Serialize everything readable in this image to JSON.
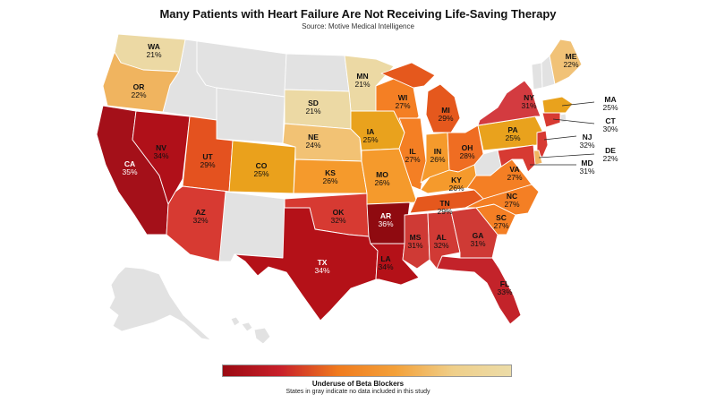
{
  "title": "Many Patients with Heart Failure Are Not Receiving Life-Saving Therapy",
  "subtitle": "Source: Motive Medical Intelligence",
  "legend": {
    "title": "Underuse of Beta Blockers",
    "note": "States in gray indicate no data included in this study",
    "gradient_colors": [
      "#9a0a12",
      "#c8202a",
      "#f07b1e",
      "#f3a13a",
      "#efcf8a",
      "#ecdca8"
    ]
  },
  "colors": {
    "no_data": "#e2e2e2",
    "border": "#ffffff",
    "water": "#ffffff"
  },
  "states": [
    {
      "abbr": "WA",
      "value": "21%"
    },
    {
      "abbr": "OR",
      "value": "22%"
    },
    {
      "abbr": "CA",
      "value": "35%"
    },
    {
      "abbr": "NV",
      "value": "34%"
    },
    {
      "abbr": "UT",
      "value": "29%"
    },
    {
      "abbr": "AZ",
      "value": "32%"
    },
    {
      "abbr": "CO",
      "value": "25%"
    },
    {
      "abbr": "MN",
      "value": "21%"
    },
    {
      "abbr": "SD",
      "value": "21%"
    },
    {
      "abbr": "NE",
      "value": "24%"
    },
    {
      "abbr": "KS",
      "value": "26%"
    },
    {
      "abbr": "OK",
      "value": "32%"
    },
    {
      "abbr": "TX",
      "value": "34%"
    },
    {
      "abbr": "IA",
      "value": "25%"
    },
    {
      "abbr": "MO",
      "value": "26%"
    },
    {
      "abbr": "AR",
      "value": "36%"
    },
    {
      "abbr": "LA",
      "value": "34%"
    },
    {
      "abbr": "WI",
      "value": "27%"
    },
    {
      "abbr": "IL",
      "value": "27%"
    },
    {
      "abbr": "MI",
      "value": "29%"
    },
    {
      "abbr": "IN",
      "value": "26%"
    },
    {
      "abbr": "OH",
      "value": "28%"
    },
    {
      "abbr": "KY",
      "value": "26%"
    },
    {
      "abbr": "TN",
      "value": "29%"
    },
    {
      "abbr": "MS",
      "value": "31%"
    },
    {
      "abbr": "AL",
      "value": "32%"
    },
    {
      "abbr": "GA",
      "value": "31%"
    },
    {
      "abbr": "FL",
      "value": "33%"
    },
    {
      "abbr": "SC",
      "value": "27%"
    },
    {
      "abbr": "NC",
      "value": "27%"
    },
    {
      "abbr": "VA",
      "value": "27%"
    },
    {
      "abbr": "PA",
      "value": "25%"
    },
    {
      "abbr": "NY",
      "value": "31%"
    },
    {
      "abbr": "ME",
      "value": "22%"
    },
    {
      "abbr": "MA",
      "value": "25%"
    },
    {
      "abbr": "CT",
      "value": "30%"
    },
    {
      "abbr": "NJ",
      "value": "32%"
    },
    {
      "abbr": "DE",
      "value": "22%"
    },
    {
      "abbr": "MD",
      "value": "31%"
    }
  ],
  "state_colors": {
    "WA": "#ecd9a4",
    "OR": "#f0b45f",
    "CA": "#a41019",
    "NV": "#b01019",
    "UT": "#e4521f",
    "AZ": "#d73a32",
    "CO": "#eaa11c",
    "MN": "#ecd9a4",
    "SD": "#ecd9a4",
    "NE": "#f2c274",
    "KS": "#f59a2c",
    "OK": "#d73a32",
    "TX": "#b41118",
    "IA": "#e9a21d",
    "MO": "#f59a2c",
    "AR": "#8f0a10",
    "LA": "#b41118",
    "WI": "#f47f24",
    "IL": "#f47f24",
    "MI": "#e5581d",
    "IN": "#f59a2c",
    "OH": "#ef6d22",
    "KY": "#f59a2c",
    "TN": "#e5581d",
    "MS": "#cf3a35",
    "AL": "#d13a35",
    "GA": "#cf3a35",
    "FL": "#c3232a",
    "SC": "#f47f24",
    "NC": "#f47f24",
    "VA": "#f47f24",
    "PA": "#e9a21d",
    "NY": "#d33b40",
    "ME": "#f1c277",
    "MA": "#e9a21d",
    "CT": "#d73a32",
    "NJ": "#d73a32",
    "DE": "#f0b45f",
    "MD": "#d73a32"
  }
}
